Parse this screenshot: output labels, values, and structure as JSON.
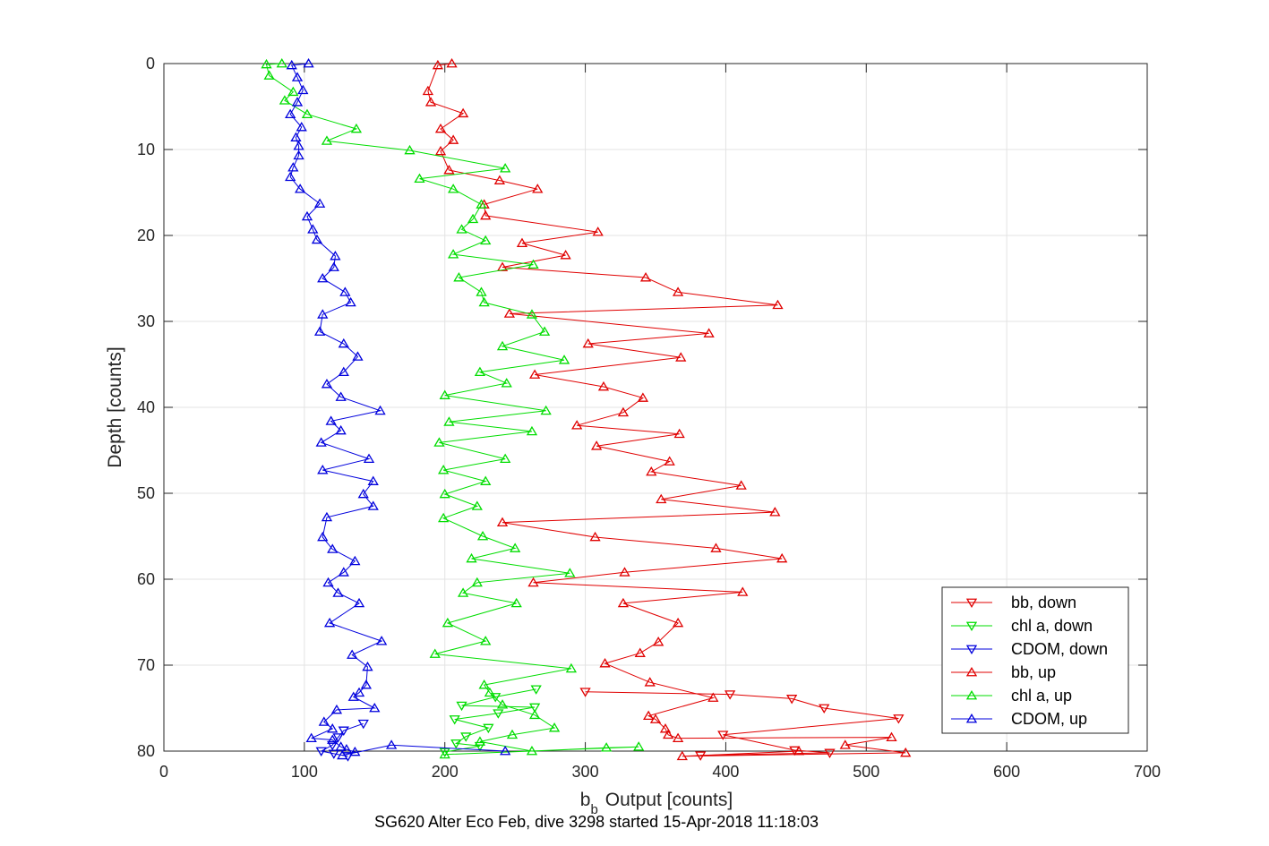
{
  "chart_data": {
    "type": "line",
    "title": "",
    "caption": "SG620 Alter Eco Feb, dive 3298 started 15-Apr-2018 11:18:03",
    "xlabel": {
      "main": "b",
      "sub": "b",
      "rest": "Output [counts]"
    },
    "ylabel": "Depth [counts]",
    "xlim": [
      0,
      700
    ],
    "ylim": [
      0,
      80
    ],
    "y_reversed": true,
    "grid": true,
    "x_ticks": [
      "0",
      "100",
      "200",
      "300",
      "400",
      "500",
      "600",
      "700"
    ],
    "y_ticks": [
      "0",
      "10",
      "20",
      "30",
      "40",
      "50",
      "60",
      "70",
      "80"
    ],
    "legend_position": "bottom-right",
    "series": [
      {
        "name": "bb, down",
        "color": "#e00000",
        "marker": "triangle-down",
        "points": [
          [
            300,
            73.1
          ],
          [
            403,
            73.4
          ],
          [
            447,
            73.9
          ],
          [
            470,
            75.0
          ],
          [
            523,
            76.2
          ],
          [
            398,
            78.1
          ],
          [
            449,
            79.9
          ],
          [
            474,
            80.2
          ],
          [
            382,
            80.5
          ]
        ]
      },
      {
        "name": "chl a, down",
        "color": "#00dd00",
        "marker": "triangle-down",
        "points": [
          [
            265,
            72.8
          ],
          [
            236,
            73.7
          ],
          [
            212,
            74.7
          ],
          [
            264,
            74.9
          ],
          [
            238,
            75.6
          ],
          [
            207,
            76.3
          ],
          [
            231,
            77.3
          ],
          [
            215,
            78.3
          ],
          [
            208,
            79.1
          ],
          [
            225,
            79.4
          ],
          [
            200,
            80.1
          ]
        ]
      },
      {
        "name": "CDOM, down",
        "color": "#0000dd",
        "marker": "triangle-down",
        "points": [
          [
            142,
            76.8
          ],
          [
            128,
            77.6
          ],
          [
            124,
            78.4
          ],
          [
            120,
            79.3
          ],
          [
            112,
            80.0
          ],
          [
            121,
            80.3
          ],
          [
            131,
            80.6
          ]
        ]
      },
      {
        "name": "bb, up",
        "color": "#e00000",
        "marker": "triangle-up",
        "points": [
          [
            205,
            0.0
          ],
          [
            195,
            0.2
          ],
          [
            188,
            3.2
          ],
          [
            190,
            4.5
          ],
          [
            213,
            5.8
          ],
          [
            197,
            7.6
          ],
          [
            206,
            8.9
          ],
          [
            197,
            10.2
          ],
          [
            203,
            12.4
          ],
          [
            239,
            13.6
          ],
          [
            266,
            14.6
          ],
          [
            228,
            16.4
          ],
          [
            229,
            17.7
          ],
          [
            309,
            19.6
          ],
          [
            255,
            20.9
          ],
          [
            286,
            22.3
          ],
          [
            241,
            23.7
          ],
          [
            343,
            24.9
          ],
          [
            366,
            26.6
          ],
          [
            437,
            28.1
          ],
          [
            246,
            29.1
          ],
          [
            388,
            31.4
          ],
          [
            302,
            32.6
          ],
          [
            368,
            34.2
          ],
          [
            264,
            36.2
          ],
          [
            313,
            37.6
          ],
          [
            341,
            38.9
          ],
          [
            327,
            40.6
          ],
          [
            294,
            42.1
          ],
          [
            367,
            43.1
          ],
          [
            308,
            44.5
          ],
          [
            360,
            46.3
          ],
          [
            347,
            47.5
          ],
          [
            411,
            49.1
          ],
          [
            354,
            50.7
          ],
          [
            435,
            52.2
          ],
          [
            241,
            53.4
          ],
          [
            307,
            55.1
          ],
          [
            393,
            56.4
          ],
          [
            440,
            57.6
          ],
          [
            328,
            59.2
          ],
          [
            263,
            60.4
          ],
          [
            412,
            61.5
          ],
          [
            327,
            62.8
          ],
          [
            366,
            65.1
          ],
          [
            352,
            67.3
          ],
          [
            339,
            68.6
          ],
          [
            314,
            69.8
          ],
          [
            346,
            72.0
          ],
          [
            391,
            73.8
          ],
          [
            345,
            75.9
          ],
          [
            350,
            76.3
          ],
          [
            357,
            77.4
          ],
          [
            359,
            78.1
          ],
          [
            366,
            78.5
          ],
          [
            518,
            78.4
          ],
          [
            485,
            79.3
          ],
          [
            528,
            80.2
          ],
          [
            369,
            80.6
          ],
          [
            452,
            80.0
          ]
        ]
      },
      {
        "name": "chl a, up",
        "color": "#00dd00",
        "marker": "triangle-up",
        "points": [
          [
            84,
            0.0
          ],
          [
            73,
            0.1
          ],
          [
            75,
            1.4
          ],
          [
            92,
            3.3
          ],
          [
            86,
            4.3
          ],
          [
            102,
            5.9
          ],
          [
            137,
            7.6
          ],
          [
            116,
            9.0
          ],
          [
            175,
            10.1
          ],
          [
            243,
            12.2
          ],
          [
            182,
            13.4
          ],
          [
            206,
            14.6
          ],
          [
            226,
            16.4
          ],
          [
            220,
            18.1
          ],
          [
            212,
            19.3
          ],
          [
            229,
            20.6
          ],
          [
            206,
            22.2
          ],
          [
            263,
            23.4
          ],
          [
            210,
            24.9
          ],
          [
            226,
            26.6
          ],
          [
            228,
            27.8
          ],
          [
            262,
            29.2
          ],
          [
            271,
            31.2
          ],
          [
            241,
            32.9
          ],
          [
            285,
            34.5
          ],
          [
            225,
            35.9
          ],
          [
            244,
            37.2
          ],
          [
            200,
            38.6
          ],
          [
            272,
            40.4
          ],
          [
            203,
            41.7
          ],
          [
            262,
            42.8
          ],
          [
            196,
            44.1
          ],
          [
            243,
            46.0
          ],
          [
            199,
            47.3
          ],
          [
            229,
            48.6
          ],
          [
            200,
            50.1
          ],
          [
            223,
            51.5
          ],
          [
            199,
            52.9
          ],
          [
            227,
            55.0
          ],
          [
            250,
            56.4
          ],
          [
            219,
            57.6
          ],
          [
            289,
            59.3
          ],
          [
            223,
            60.4
          ],
          [
            213,
            61.6
          ],
          [
            251,
            62.8
          ],
          [
            202,
            65.1
          ],
          [
            229,
            67.2
          ],
          [
            193,
            68.7
          ],
          [
            290,
            70.4
          ],
          [
            228,
            72.3
          ],
          [
            232,
            73.2
          ],
          [
            241,
            74.6
          ],
          [
            264,
            75.8
          ],
          [
            278,
            77.3
          ],
          [
            248,
            78.1
          ],
          [
            225,
            78.9
          ],
          [
            262,
            80.0
          ],
          [
            315,
            79.6
          ],
          [
            338,
            79.5
          ],
          [
            200,
            80.4
          ]
        ]
      },
      {
        "name": "CDOM, up",
        "color": "#0000dd",
        "marker": "triangle-up",
        "points": [
          [
            103,
            0.0
          ],
          [
            91,
            0.2
          ],
          [
            95,
            1.6
          ],
          [
            99,
            3.1
          ],
          [
            95,
            4.5
          ],
          [
            90,
            5.9
          ],
          [
            98,
            7.4
          ],
          [
            94,
            8.6
          ],
          [
            96,
            9.6
          ],
          [
            96,
            10.7
          ],
          [
            92,
            12.1
          ],
          [
            90,
            13.2
          ],
          [
            97,
            14.6
          ],
          [
            111,
            16.3
          ],
          [
            102,
            17.8
          ],
          [
            106,
            19.3
          ],
          [
            109,
            20.5
          ],
          [
            122,
            22.4
          ],
          [
            121,
            23.7
          ],
          [
            113,
            25.0
          ],
          [
            129,
            26.6
          ],
          [
            133,
            27.8
          ],
          [
            113,
            29.2
          ],
          [
            111,
            31.2
          ],
          [
            128,
            32.6
          ],
          [
            138,
            34.1
          ],
          [
            128,
            35.9
          ],
          [
            116,
            37.3
          ],
          [
            126,
            38.8
          ],
          [
            154,
            40.4
          ],
          [
            119,
            41.6
          ],
          [
            126,
            42.7
          ],
          [
            112,
            44.1
          ],
          [
            146,
            46.0
          ],
          [
            113,
            47.3
          ],
          [
            149,
            48.6
          ],
          [
            142,
            50.1
          ],
          [
            149,
            51.5
          ],
          [
            116,
            52.8
          ],
          [
            113,
            55.1
          ],
          [
            120,
            56.5
          ],
          [
            136,
            57.9
          ],
          [
            128,
            59.2
          ],
          [
            117,
            60.4
          ],
          [
            124,
            61.6
          ],
          [
            139,
            62.8
          ],
          [
            118,
            65.1
          ],
          [
            155,
            67.2
          ],
          [
            134,
            68.8
          ],
          [
            145,
            70.2
          ],
          [
            144,
            72.3
          ],
          [
            139,
            73.2
          ],
          [
            135,
            73.7
          ],
          [
            150,
            75.0
          ],
          [
            123,
            75.2
          ],
          [
            114,
            76.6
          ],
          [
            120,
            77.4
          ],
          [
            105,
            78.5
          ],
          [
            120,
            78.7
          ],
          [
            126,
            79.5
          ],
          [
            130,
            79.8
          ],
          [
            136,
            80.1
          ],
          [
            127,
            80.5
          ],
          [
            162,
            79.3
          ],
          [
            243,
            80.0
          ]
        ]
      }
    ]
  }
}
